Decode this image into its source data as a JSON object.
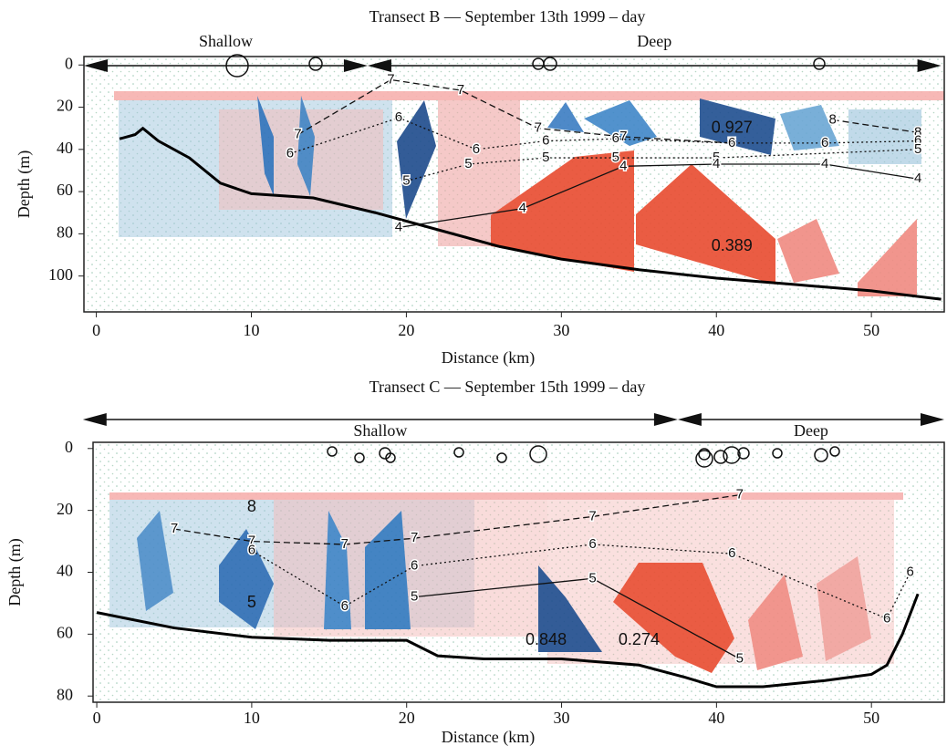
{
  "chart_data": [
    {
      "type": "line",
      "title": "Transect B — September 13th 1999 – day",
      "x_label": "Distance (km)",
      "y_label": "Depth (m)",
      "xlim": [
        -0.8,
        54.7
      ],
      "ylim": [
        117,
        -4
      ],
      "xticks": [
        0,
        10,
        20,
        30,
        40,
        50
      ],
      "yticks": [
        0,
        20,
        40,
        60,
        80,
        100
      ],
      "regions": [
        {
          "label": "Shallow",
          "start": -0.8,
          "end": 17.5
        },
        {
          "label": "Deep",
          "start": 17.5,
          "end": 54.5
        }
      ],
      "x": [
        1.5,
        2.5,
        3,
        4,
        6,
        8,
        10,
        14,
        18,
        22,
        26,
        30,
        35,
        40,
        45,
        50,
        54.5
      ],
      "values": [
        35,
        33,
        30,
        36,
        44,
        56,
        61,
        63,
        70,
        78,
        86,
        92,
        97,
        101,
        104,
        107,
        111
      ],
      "color": "#000000",
      "contours": [
        {
          "level": 7,
          "dash": "dashed",
          "x": [
            13,
            19,
            23.5,
            28.5,
            34,
            41
          ],
          "y": [
            33,
            7,
            12,
            30,
            34,
            37
          ]
        },
        {
          "level": 8,
          "dash": "dashed",
          "x": [
            47.5,
            53
          ],
          "y": [
            26,
            32
          ]
        },
        {
          "level": 6,
          "dash": "dotted",
          "x": [
            12.5,
            19.5,
            24.5,
            29,
            33.5,
            41,
            47,
            53
          ],
          "y": [
            42,
            25,
            40,
            36,
            35,
            37,
            37,
            36
          ]
        },
        {
          "level": 5,
          "dash": "dotted",
          "x": [
            20,
            24,
            29,
            33.5,
            40,
            53
          ],
          "y": [
            55,
            47,
            44,
            44,
            44,
            40
          ]
        },
        {
          "level": 4,
          "dash": "solid",
          "x": [
            19.5,
            27.5,
            34,
            40,
            47,
            53
          ],
          "y": [
            77,
            68,
            48,
            47,
            47,
            54
          ]
        }
      ],
      "annotations": [
        {
          "text": "0.927",
          "x": 41,
          "y": 30
        },
        {
          "text": "0.389",
          "x": 41,
          "y": 86
        }
      ]
    },
    {
      "type": "line",
      "title": "Transect C — September 15th 1999 – day",
      "x_label": "Distance (km)",
      "y_label": "Depth (m)",
      "xlim": [
        -0.24,
        54.7
      ],
      "ylim": [
        82,
        -2
      ],
      "xticks": [
        0,
        10,
        20,
        30,
        40,
        50
      ],
      "yticks": [
        0,
        20,
        40,
        60,
        80
      ],
      "regions": [
        {
          "label": "Shallow",
          "start": -0.9,
          "end": 37.5
        },
        {
          "label": "Deep",
          "start": 37.5,
          "end": 54.7
        }
      ],
      "x": [
        0,
        5,
        10,
        15,
        20,
        22,
        25,
        30,
        35,
        38,
        40,
        43,
        47,
        50,
        51,
        52,
        53
      ],
      "values": [
        53,
        58,
        61,
        62,
        62,
        67,
        68,
        68,
        70,
        74,
        77,
        77,
        75,
        73,
        70,
        60,
        47
      ],
      "color": "#000000",
      "contours": [
        {
          "level": 7,
          "dash": "dashed",
          "x": [
            5,
            10,
            16,
            20.5,
            32,
            41.5
          ],
          "y": [
            26,
            30,
            31,
            29,
            22,
            15
          ]
        },
        {
          "level": 6,
          "dash": "dotted",
          "x": [
            10,
            16,
            20.5,
            32,
            41,
            51,
            52.5
          ],
          "y": [
            33,
            51,
            38,
            31,
            34,
            55,
            40
          ]
        },
        {
          "level": 5,
          "dash": "solid",
          "x": [
            20.5,
            32,
            41.5
          ],
          "y": [
            48,
            42,
            68
          ]
        }
      ],
      "annotations": [
        {
          "text": "0.848",
          "x": 29,
          "y": 62
        },
        {
          "text": "0.274",
          "x": 35,
          "y": 62
        },
        {
          "text": "8",
          "x": 10,
          "y": 19
        },
        {
          "text": "5",
          "x": 10,
          "y": 50
        }
      ]
    }
  ]
}
